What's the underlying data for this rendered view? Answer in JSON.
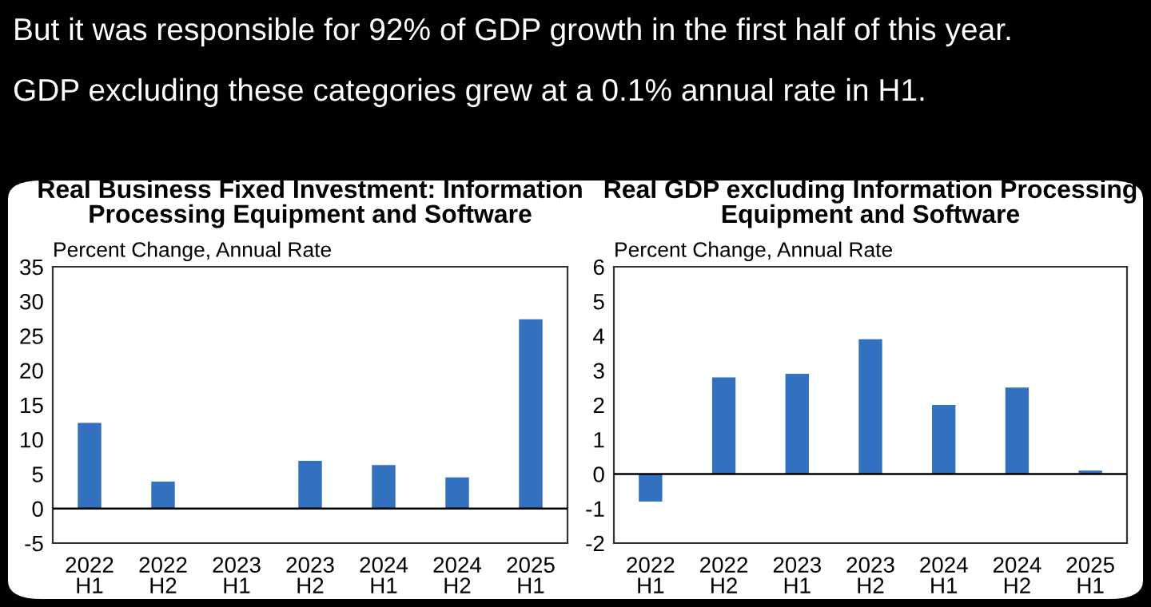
{
  "chart_data": [
    {
      "type": "bar",
      "title": "Real Business Fixed Investment: Information\nProcessing Equipment and Software",
      "ylabel": "Percent Change, Annual Rate",
      "annotations": [
        "But it was responsible for 92% of GDP growth in the first half of this year.",
        "GDP excluding these categories grew at a 0.1% annual rate in H1."
      ],
      "categories": [
        "2022\nH1",
        "2022\nH2",
        "2023\nH1",
        "2023\nH2",
        "2024\nH1",
        "2024\nH2",
        "2025\nH1"
      ],
      "values": [
        12.4,
        3.9,
        0.0,
        6.9,
        6.3,
        4.5,
        27.4
      ],
      "color": "#3370c0",
      "ylim": [
        -5,
        35
      ],
      "yticks": [
        -5,
        0,
        5,
        10,
        15,
        20,
        25,
        30,
        35
      ],
      "grid": false,
      "ref_lines": [
        {
          "axis": "y",
          "value": 0,
          "color": "#000000"
        }
      ]
    },
    {
      "type": "bar",
      "title": "Real GDP excluding Information Processing\nEquipment and Software",
      "ylabel": "Percent Change, Annual Rate",
      "categories": [
        "2022\nH1",
        "2022\nH2",
        "2023\nH1",
        "2023\nH2",
        "2024\nH1",
        "2024\nH2",
        "2025\nH1"
      ],
      "values": [
        -0.8,
        2.8,
        2.9,
        3.9,
        2.0,
        2.5,
        0.1
      ],
      "color": "#3370c0",
      "ylim": [
        -2,
        6
      ],
      "yticks": [
        -2,
        -1,
        0,
        1,
        2,
        3,
        4,
        5,
        6
      ],
      "grid": false,
      "ref_lines": [
        {
          "axis": "y",
          "value": 0,
          "color": "#000000"
        }
      ]
    }
  ]
}
